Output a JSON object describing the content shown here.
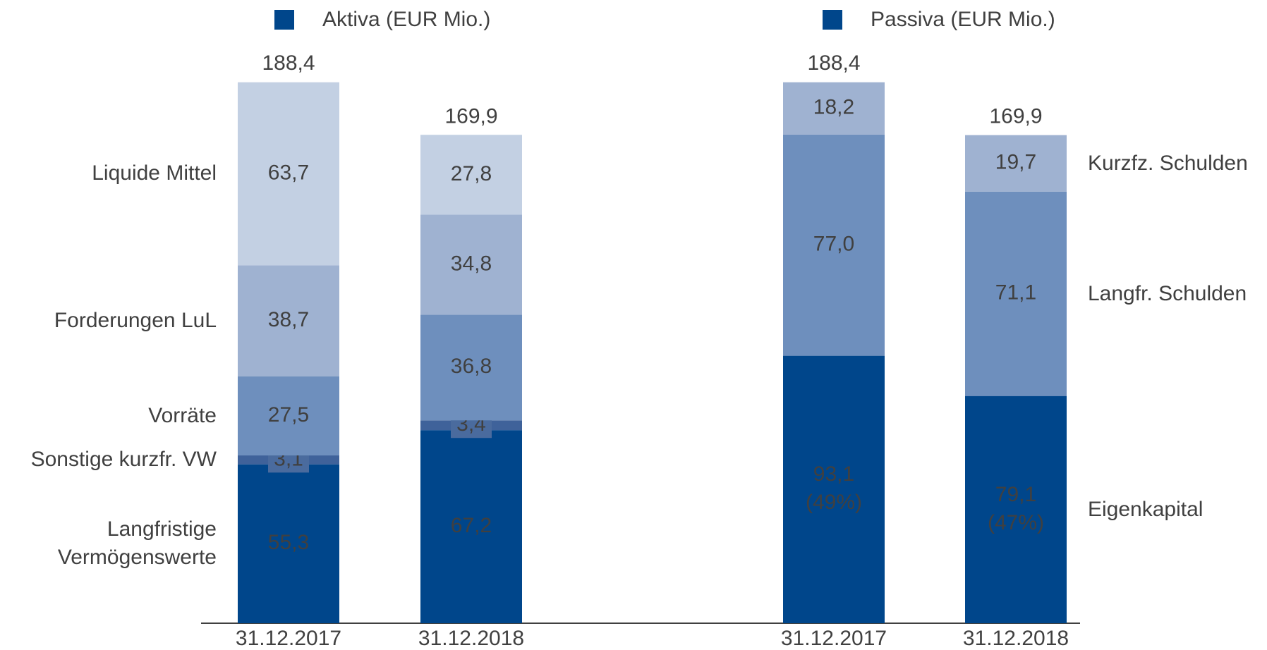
{
  "chart_data": [
    {
      "type": "bar",
      "stacked": true,
      "title": "Aktiva (EUR Mio.)",
      "color": "#00468b",
      "labels_side": "left",
      "categories": [
        "31.12.2017",
        "31.12.2018"
      ],
      "ylim": [
        0,
        200
      ],
      "totals": [
        188.4,
        169.9
      ],
      "total_labels": [
        "188,4",
        "169,9"
      ],
      "series": [
        {
          "name": "Langfristige\nVermögenswerte",
          "color": "#00468b",
          "label_color": "#ffffff",
          "values": [
            55.3,
            67.2
          ],
          "value_labels": [
            "55,3",
            "67,2"
          ]
        },
        {
          "name": "Sonstige kurzfr. VW",
          "color": "#3f629a",
          "label_color": "#ffffff",
          "values": [
            3.1,
            3.4
          ],
          "value_labels": [
            "3,1",
            "3,4"
          ]
        },
        {
          "name": "Vorräte",
          "color": "#6e8fbd",
          "label_color": "#ffffff",
          "values": [
            27.5,
            36.8
          ],
          "value_labels": [
            "27,5",
            "36,8"
          ]
        },
        {
          "name": "Forderungen LuL",
          "color": "#9fb2d1",
          "label_color": "#404040",
          "values": [
            38.7,
            34.8
          ],
          "value_labels": [
            "38,7",
            "34,8"
          ]
        },
        {
          "name": "Liquide Mittel",
          "color": "#c3d0e3",
          "label_color": "#404040",
          "values": [
            63.7,
            27.8
          ],
          "value_labels": [
            "63,7",
            "27,8"
          ]
        }
      ]
    },
    {
      "type": "bar",
      "stacked": true,
      "title": "Passiva (EUR Mio.)",
      "color": "#00468b",
      "labels_side": "right",
      "categories": [
        "31.12.2017",
        "31.12.2018"
      ],
      "ylim": [
        0,
        200
      ],
      "totals": [
        188.4,
        169.9
      ],
      "total_labels": [
        "188,4",
        "169,9"
      ],
      "series": [
        {
          "name": "Eigenkapital",
          "color": "#00468b",
          "label_color": "#ffffff",
          "values": [
            93.1,
            79.1
          ],
          "value_labels": [
            "93,1",
            "79,1"
          ],
          "shares": [
            49,
            47
          ],
          "share_labels": [
            "(49%)",
            "(47%)"
          ]
        },
        {
          "name": "Langfr. Schulden",
          "color": "#6e8fbd",
          "label_color": "#ffffff",
          "values": [
            77.0,
            71.1
          ],
          "value_labels": [
            "77,0",
            "71,1"
          ]
        },
        {
          "name": "Kurzfz. Schulden",
          "color": "#9fb2d1",
          "label_color": "#404040",
          "values": [
            18.2,
            19.7
          ],
          "value_labels": [
            "18,2",
            "19,7"
          ]
        }
      ]
    }
  ]
}
